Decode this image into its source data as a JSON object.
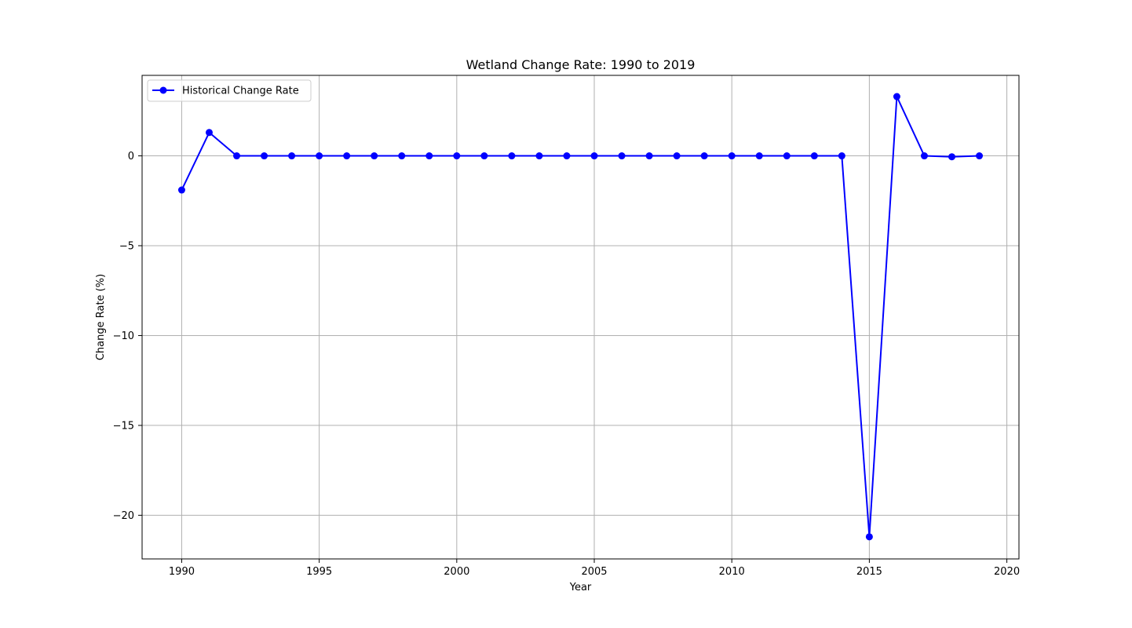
{
  "chart_data": {
    "type": "line",
    "title": "Wetland Change Rate: 1990 to 2019",
    "xlabel": "Year",
    "ylabel": "Change Rate (%)",
    "xlim": [
      1988.56,
      2020.44
    ],
    "ylim": [
      -22.43,
      4.48
    ],
    "xticks": [
      1990,
      1995,
      2000,
      2005,
      2010,
      2015,
      2020
    ],
    "yticks": [
      -20,
      -15,
      -10,
      -5,
      0
    ],
    "ytick_labels": [
      "−20",
      "−15",
      "−10",
      "−5",
      "0"
    ],
    "grid": true,
    "legend": {
      "placement": "top-left",
      "entries": [
        "Historical Change Rate"
      ]
    },
    "series": [
      {
        "name": "Historical Change Rate",
        "color": "#0000ff",
        "marker": "circle",
        "x": [
          1990,
          1991,
          1992,
          1993,
          1994,
          1995,
          1996,
          1997,
          1998,
          1999,
          2000,
          2001,
          2002,
          2003,
          2004,
          2005,
          2006,
          2007,
          2008,
          2009,
          2010,
          2011,
          2012,
          2013,
          2014,
          2015,
          2016,
          2017,
          2018,
          2019
        ],
        "y": [
          -1.9,
          1.3,
          0,
          0,
          0,
          0,
          0,
          0,
          0,
          0,
          0,
          0,
          0,
          0,
          0,
          0,
          0,
          0,
          0,
          0,
          0,
          0,
          0,
          0,
          0,
          -21.2,
          3.3,
          0,
          -0.05,
          0
        ]
      }
    ]
  }
}
